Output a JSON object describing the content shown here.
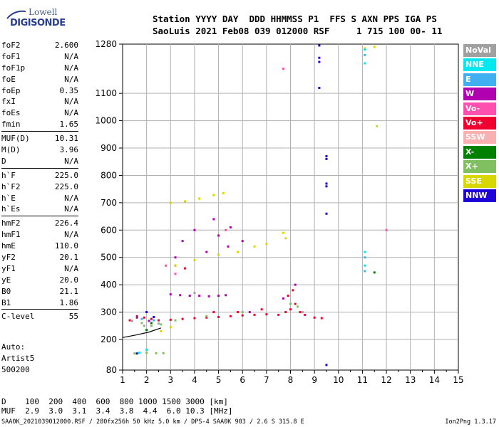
{
  "logo": {
    "line1": "Lowell",
    "line2": "DIGISONDE"
  },
  "header": {
    "line1": "Station YYYY DAY  DDD HHMMSS P1  FFS S AXN PPS IGA PS",
    "line2": "SaoLuis 2021 Feb08 039 012000 RSF     1 715 100 00- 11"
  },
  "params": [
    {
      "k": "foF2",
      "v": "2.600"
    },
    {
      "k": "foF1",
      "v": "N/A"
    },
    {
      "k": "foF1p",
      "v": "N/A"
    },
    {
      "k": "foE",
      "v": "N/A"
    },
    {
      "k": "foEp",
      "v": "0.35"
    },
    {
      "k": "fxI",
      "v": "N/A"
    },
    {
      "k": "foEs",
      "v": "N/A"
    },
    {
      "k": "fmin",
      "v": "1.65"
    },
    {
      "k": "MUF(D)",
      "v": "10.31"
    },
    {
      "k": "M(D)",
      "v": "3.96"
    },
    {
      "k": "D",
      "v": "N/A"
    },
    {
      "k": "h`F",
      "v": "225.0"
    },
    {
      "k": "h`F2",
      "v": "225.0"
    },
    {
      "k": "h`E",
      "v": "N/A"
    },
    {
      "k": "h`Es",
      "v": "N/A"
    },
    {
      "k": "hmF2",
      "v": "226.4"
    },
    {
      "k": "hmF1",
      "v": "N/A"
    },
    {
      "k": "hmE",
      "v": "110.0"
    },
    {
      "k": "yF2",
      "v": "20.1"
    },
    {
      "k": "yF1",
      "v": "N/A"
    },
    {
      "k": "yE",
      "v": "20.0"
    },
    {
      "k": "B0",
      "v": "21.1"
    },
    {
      "k": "B1",
      "v": "1.86"
    },
    {
      "k": "C-level",
      "v": "55"
    }
  ],
  "auto": {
    "line1": "Auto:",
    "line2": "Artist5",
    "line3": "500200"
  },
  "legend": [
    {
      "label": "NoVal",
      "color": "#a0a0a0"
    },
    {
      "label": "NNE",
      "color": "#00e8f0"
    },
    {
      "label": "E",
      "color": "#40b0f0"
    },
    {
      "label": "W",
      "color": "#b000b0"
    },
    {
      "label": "Vo-",
      "color": "#ff50b0"
    },
    {
      "label": "Vo+",
      "color": "#f00030"
    },
    {
      "label": "SSW",
      "color": "#f8b0b0"
    },
    {
      "label": "X-",
      "color": "#008000"
    },
    {
      "label": "X+",
      "color": "#80c060"
    },
    {
      "label": "SSE",
      "color": "#d8d800"
    },
    {
      "label": "NNW",
      "color": "#2000d8"
    }
  ],
  "scale": {
    "line1": "D    100  200  400  600  800 1000 1500 3000 [km]",
    "line2": "MUF  2.9  3.0  3.1  3.4  3.8  4.4  6.0 10.3 [MHz]"
  },
  "footer": {
    "left": "SAA0K_2021039012000.RSF / 280fx256h 50 kHz 5.0 km / DPS-4 SAA0K 903 / 2.6 S 315.8 E",
    "right": "Ion2Png 1.3.17"
  },
  "chart_data": {
    "type": "scatter",
    "xlim": [
      1,
      15
    ],
    "ylim": [
      80,
      1280
    ],
    "x_ticks": [
      1,
      2,
      3,
      4,
      5,
      6,
      7,
      8,
      9,
      10,
      11,
      12,
      13,
      14,
      15
    ],
    "y_ticks": [
      80,
      200,
      300,
      400,
      500,
      600,
      700,
      800,
      900,
      1000,
      1100,
      1280
    ],
    "grid": true,
    "series": [
      {
        "name": "Vo+",
        "color": "#f00030",
        "points": [
          [
            1.3,
            270
          ],
          [
            1.6,
            285
          ],
          [
            1.9,
            280
          ],
          [
            2.2,
            275
          ],
          [
            2.5,
            270
          ],
          [
            3.0,
            272
          ],
          [
            3.5,
            275
          ],
          [
            4.0,
            278
          ],
          [
            4.5,
            280
          ],
          [
            5.0,
            282
          ],
          [
            5.5,
            285
          ],
          [
            6.0,
            288
          ],
          [
            6.5,
            290
          ],
          [
            7.0,
            292
          ],
          [
            7.5,
            290
          ],
          [
            7.8,
            300
          ],
          [
            8.0,
            310
          ],
          [
            8.2,
            330
          ],
          [
            8.4,
            300
          ],
          [
            8.6,
            290
          ],
          [
            9.0,
            280
          ],
          [
            9.3,
            278
          ],
          [
            7.9,
            360
          ],
          [
            8.1,
            380
          ],
          [
            6.8,
            310
          ],
          [
            5.8,
            300
          ],
          [
            4.8,
            300
          ],
          [
            3.6,
            460
          ],
          [
            3.2,
            470
          ]
        ]
      },
      {
        "name": "W",
        "color": "#b000b0",
        "points": [
          [
            3.0,
            365
          ],
          [
            3.4,
            362
          ],
          [
            3.8,
            360
          ],
          [
            4.2,
            360
          ],
          [
            4.6,
            358
          ],
          [
            5.0,
            360
          ],
          [
            5.3,
            362
          ],
          [
            3.5,
            560
          ],
          [
            4.0,
            600
          ],
          [
            4.5,
            520
          ],
          [
            5.0,
            580
          ],
          [
            5.5,
            610
          ],
          [
            6.0,
            560
          ],
          [
            3.2,
            500
          ],
          [
            4.8,
            640
          ],
          [
            5.4,
            540
          ],
          [
            1.6,
            280
          ],
          [
            2.1,
            268
          ],
          [
            6.3,
            300
          ],
          [
            7.7,
            350
          ],
          [
            8.2,
            400
          ]
        ]
      },
      {
        "name": "X+",
        "color": "#80c060",
        "points": [
          [
            1.5,
            145
          ],
          [
            2.0,
            148
          ],
          [
            2.4,
            146
          ],
          [
            2.7,
            146
          ],
          [
            1.8,
            260
          ],
          [
            2.2,
            250
          ],
          [
            2.6,
            255
          ],
          [
            3.2,
            270
          ],
          [
            4.5,
            285
          ],
          [
            6.0,
            300
          ],
          [
            8.0,
            330
          ],
          [
            8.3,
            320
          ]
        ]
      },
      {
        "name": "SSE",
        "color": "#d8d800",
        "points": [
          [
            3.0,
            700
          ],
          [
            3.6,
            705
          ],
          [
            4.2,
            715
          ],
          [
            4.8,
            728
          ],
          [
            5.2,
            735
          ],
          [
            3.2,
            470
          ],
          [
            4.0,
            490
          ],
          [
            5.0,
            510
          ],
          [
            5.8,
            520
          ],
          [
            6.5,
            540
          ],
          [
            7.0,
            550
          ],
          [
            7.7,
            590
          ],
          [
            7.8,
            570
          ],
          [
            2.6,
            230
          ],
          [
            3.0,
            245
          ],
          [
            11.1,
            1265
          ],
          [
            11.5,
            1270
          ],
          [
            11.6,
            980
          ]
        ]
      },
      {
        "name": "NNE",
        "color": "#00e8f0",
        "points": [
          [
            11.1,
            1260
          ],
          [
            11.1,
            1210
          ],
          [
            11.1,
            520
          ],
          [
            11.1,
            470
          ],
          [
            1.7,
            148
          ],
          [
            2.0,
            160
          ]
        ]
      },
      {
        "name": "E",
        "color": "#40b0f0",
        "points": [
          [
            11.1,
            1240
          ],
          [
            11.1,
            500
          ],
          [
            11.1,
            450
          ],
          [
            1.8,
            275
          ],
          [
            2.3,
            270
          ]
        ]
      },
      {
        "name": "NNW",
        "color": "#2000d8",
        "points": [
          [
            9.2,
            1275
          ],
          [
            9.2,
            1230
          ],
          [
            9.2,
            1215
          ],
          [
            9.2,
            1120
          ],
          [
            9.5,
            870
          ],
          [
            9.5,
            860
          ],
          [
            9.5,
            770
          ],
          [
            9.5,
            760
          ],
          [
            9.5,
            660
          ],
          [
            9.5,
            100
          ],
          [
            1.6,
            145
          ],
          [
            2.0,
            300
          ],
          [
            2.3,
            282
          ]
        ]
      },
      {
        "name": "Vo-",
        "color": "#ff50b0",
        "points": [
          [
            7.7,
            1190
          ],
          [
            12.0,
            600
          ],
          [
            3.2,
            440
          ],
          [
            2.8,
            470
          ],
          [
            5.3,
            600
          ]
        ]
      },
      {
        "name": "X-",
        "color": "#008000",
        "points": [
          [
            11.5,
            445
          ],
          [
            2.2,
            260
          ],
          [
            2.0,
            235
          ]
        ]
      },
      {
        "name": "NoVal",
        "color": "#a0a0a0",
        "points": [
          [
            1.4,
            268
          ],
          [
            1.9,
            250
          ],
          [
            2.5,
            258
          ],
          [
            8.5,
            300
          ],
          [
            4.0,
            370
          ]
        ]
      }
    ],
    "profile_line": [
      [
        1.0,
        207
      ],
      [
        1.6,
        217
      ],
      [
        2.1,
        227
      ],
      [
        2.6,
        242
      ]
    ]
  }
}
